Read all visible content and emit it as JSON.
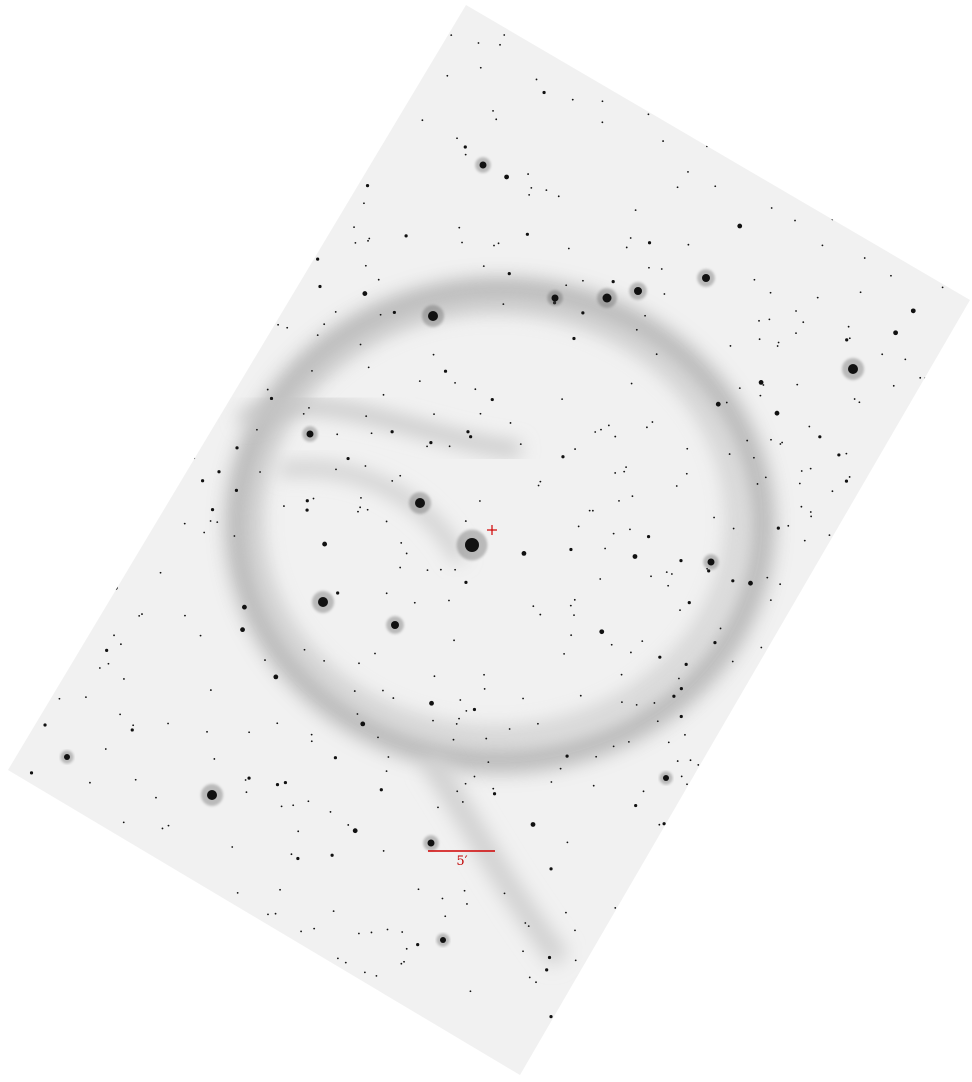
{
  "scale_bar": {
    "label": "5′"
  }
}
